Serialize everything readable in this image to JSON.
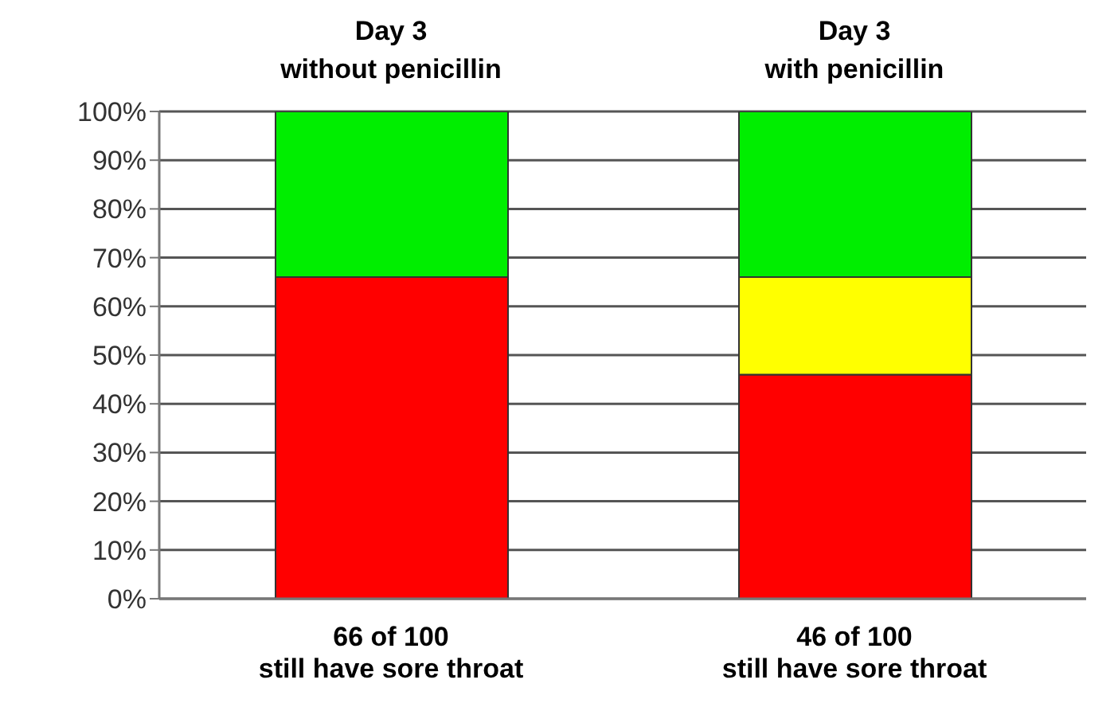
{
  "chart_data": {
    "type": "bar",
    "stacked": true,
    "categories": [
      "66 of 100\nstill have sore throat",
      "46 of 100\nstill have sore throat"
    ],
    "series": [
      {
        "color": "#ff0000",
        "values": [
          66,
          46
        ]
      },
      {
        "color": "#ffff00",
        "values": [
          null,
          20
        ]
      },
      {
        "color": "#00ee00",
        "values": [
          34,
          34
        ]
      }
    ],
    "ylim": [
      0,
      100
    ],
    "yticks": [
      {
        "value": 0,
        "label": "0%"
      },
      {
        "value": 10,
        "label": "10%"
      },
      {
        "value": 20,
        "label": "20%"
      },
      {
        "value": 30,
        "label": "30%"
      },
      {
        "value": 40,
        "label": "40%"
      },
      {
        "value": 50,
        "label": "50%"
      },
      {
        "value": 60,
        "label": "60%"
      },
      {
        "value": 70,
        "label": "70%"
      },
      {
        "value": 80,
        "label": "80%"
      },
      {
        "value": 90,
        "label": "90%"
      },
      {
        "value": 100,
        "label": "100%"
      }
    ],
    "grid": "y",
    "annotations": [
      "Day 3\nwithout penicillin",
      "Day 3\nwith penicillin"
    ]
  }
}
